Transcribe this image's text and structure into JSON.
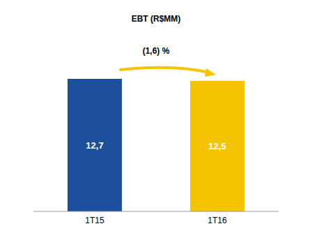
{
  "chart_data": {
    "type": "bar",
    "title": "EBT (R$MM)",
    "annotation": "(1,6) %",
    "categories": [
      "1T15",
      "1T16"
    ],
    "values": [
      12.7,
      12.5
    ],
    "value_labels": [
      "12,7",
      "12,5"
    ],
    "colors": [
      "#1c4f9c",
      "#f5c400"
    ],
    "data_labels": true,
    "tick_labels": "x",
    "grid": false
  }
}
